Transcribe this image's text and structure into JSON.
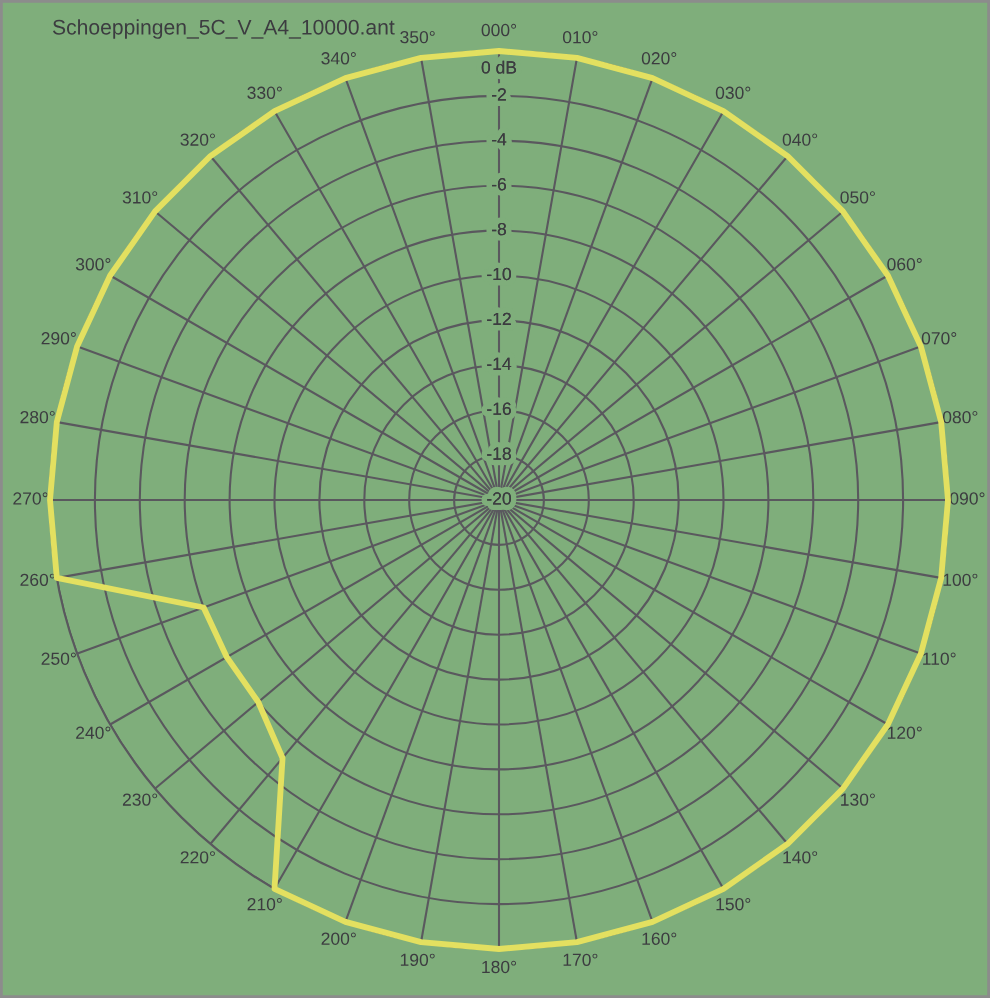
{
  "chart_data": {
    "type": "radar",
    "title": "Schoeppingen_5C_V_A4_10000.ant",
    "categories": [
      "000°",
      "010°",
      "020°",
      "030°",
      "040°",
      "050°",
      "060°",
      "070°",
      "080°",
      "090°",
      "100°",
      "110°",
      "120°",
      "130°",
      "140°",
      "150°",
      "160°",
      "170°",
      "180°",
      "190°",
      "200°",
      "210°",
      "220°",
      "230°",
      "240°",
      "250°",
      "260°",
      "270°",
      "280°",
      "290°",
      "300°",
      "310°",
      "320°",
      "330°",
      "340°",
      "350°"
    ],
    "series": [
      {
        "color": "#e3e060",
        "values": [
          0,
          0,
          0,
          0,
          0,
          0,
          0,
          0,
          0,
          0,
          0,
          0,
          0,
          0,
          0,
          0,
          0,
          0,
          0,
          0,
          0,
          0,
          -5,
          -6,
          -6,
          -6,
          0,
          0,
          0,
          0,
          0,
          0,
          0,
          0,
          0,
          0
        ]
      }
    ],
    "ylim": [
      -20,
      0
    ],
    "yticks": [
      -20,
      -18,
      -16,
      -14,
      -12,
      -10,
      -8,
      -6,
      -4,
      -2,
      {
        "value": 0,
        "label": "0 dB"
      }
    ],
    "grid": true
  }
}
